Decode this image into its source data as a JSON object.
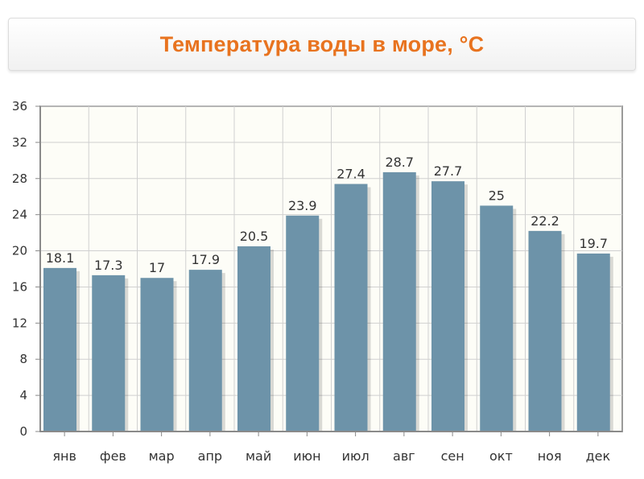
{
  "header": {
    "title": "Температура воды в море, °С"
  },
  "colors": {
    "bar": "#6d93a9",
    "title": "#e8731f",
    "plot_bg": "#fdfdf7",
    "grid": "#d0d0d0"
  },
  "chart_data": {
    "type": "bar",
    "title": "Температура воды в море, °С",
    "categories": [
      "янв",
      "фев",
      "мар",
      "апр",
      "май",
      "июн",
      "июл",
      "авг",
      "сен",
      "окт",
      "ноя",
      "дек"
    ],
    "values": [
      18.1,
      17.3,
      17,
      17.9,
      20.5,
      23.9,
      27.4,
      28.7,
      27.7,
      25,
      22.2,
      19.7
    ],
    "value_labels": [
      "18.1",
      "17.3",
      "17",
      "17.9",
      "20.5",
      "23.9",
      "27.4",
      "28.7",
      "27.7",
      "25",
      "22.2",
      "19.7"
    ],
    "yticks": [
      "0",
      "4",
      "8",
      "12",
      "16",
      "20",
      "24",
      "28",
      "32",
      "36"
    ],
    "ylim": [
      0,
      36
    ],
    "grid": true,
    "legend": "none"
  }
}
